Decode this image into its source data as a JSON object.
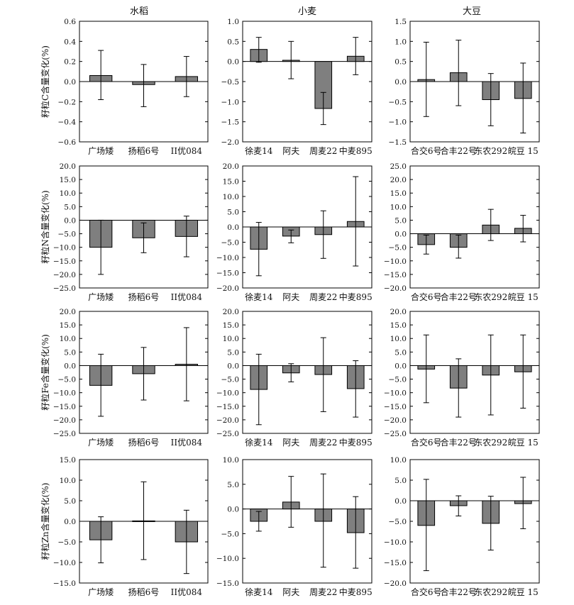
{
  "figure": {
    "column_titles": [
      "水稻",
      "小麦",
      "大豆"
    ],
    "row_labels": [
      "籽粒C含量变化(%)",
      "籽粒N含量变化(%)",
      "籽粒Fe含量变化(%)",
      "籽粒Zn含量变化(%)"
    ]
  },
  "colors": {
    "bar": "#7f7f7f",
    "axis": "#000000"
  },
  "chart_data": [
    {
      "type": "bar",
      "row": 0,
      "col": 0,
      "crop": "水稻",
      "ylabel": "籽粒C含量变化(%)",
      "categories": [
        "广场矮",
        "扬稻6号",
        "II优084"
      ],
      "values": [
        0.06,
        -0.03,
        0.05
      ],
      "err_upper": [
        0.31,
        0.17,
        0.25
      ],
      "err_lower": [
        -0.18,
        -0.25,
        -0.15
      ],
      "ylim": [
        -0.6,
        0.6
      ],
      "ticks": [
        -0.6,
        -0.4,
        -0.2,
        0.0,
        0.2,
        0.4,
        0.6
      ],
      "tick_labels": [
        "−0.6",
        "−0.4",
        "−0.2",
        "0.0",
        "0.2",
        "0.4",
        "0.6"
      ]
    },
    {
      "type": "bar",
      "row": 0,
      "col": 1,
      "crop": "小麦",
      "ylabel": "",
      "categories": [
        "徐麦14",
        "阿夫",
        "周麦22",
        "中麦895"
      ],
      "values": [
        0.3,
        0.03,
        -1.17,
        0.13
      ],
      "err_upper": [
        0.6,
        0.5,
        -0.77,
        0.6
      ],
      "err_lower": [
        -0.02,
        -0.43,
        -1.57,
        -0.33
      ],
      "ylim": [
        -2.0,
        1.0
      ],
      "ticks": [
        -2.0,
        -1.5,
        -1.0,
        -0.5,
        0.0,
        0.5,
        1.0
      ],
      "tick_labels": [
        "−2.0",
        "−1.5",
        "−1.0",
        "−0.5",
        "0.0",
        "0.5",
        "1.0"
      ]
    },
    {
      "type": "bar",
      "row": 0,
      "col": 2,
      "crop": "大豆",
      "ylabel": "",
      "categories": [
        "合交6号",
        "合丰22号",
        "东农292",
        "皖豆 15"
      ],
      "values": [
        0.05,
        0.22,
        -0.45,
        -0.42
      ],
      "err_upper": [
        0.98,
        1.03,
        0.2,
        0.46
      ],
      "err_lower": [
        -0.87,
        -0.6,
        -1.1,
        -1.28
      ],
      "ylim": [
        -1.5,
        1.5
      ],
      "ticks": [
        -1.5,
        -1.0,
        -0.5,
        0.0,
        0.5,
        1.0,
        1.5
      ],
      "tick_labels": [
        "−1.5",
        "−1.0",
        "−0.5",
        "0.0",
        "0.5",
        "1.0",
        "1.5"
      ]
    },
    {
      "type": "bar",
      "row": 1,
      "col": 0,
      "crop": "水稻",
      "ylabel": "籽粒N含量变化(%)",
      "categories": [
        "广场矮",
        "扬稻6号",
        "II优084"
      ],
      "values": [
        -10.0,
        -6.5,
        -6.0
      ],
      "err_upper": [
        0.0,
        -1.0,
        1.5
      ],
      "err_lower": [
        -20.0,
        -12.0,
        -13.5
      ],
      "ylim": [
        -25.0,
        20.0
      ],
      "ticks": [
        -25,
        -20,
        -15,
        -10,
        -5,
        0,
        5,
        10,
        15,
        20
      ],
      "tick_labels": [
        "−25.0",
        "−20.0",
        "−15.0",
        "−10.0",
        "−5.0",
        "0.0",
        "5.0",
        "10.0",
        "15.0",
        "20.0"
      ]
    },
    {
      "type": "bar",
      "row": 1,
      "col": 1,
      "crop": "小麦",
      "ylabel": "",
      "categories": [
        "徐麦14",
        "阿夫",
        "周麦22",
        "中麦895"
      ],
      "values": [
        -7.3,
        -3.0,
        -2.5,
        1.8
      ],
      "err_upper": [
        1.5,
        -1.0,
        5.3,
        16.5
      ],
      "err_lower": [
        -16.0,
        -5.2,
        -10.3,
        -12.8
      ],
      "ylim": [
        -20.0,
        20.0
      ],
      "ticks": [
        -20,
        -15,
        -10,
        -5,
        0,
        5,
        10,
        15,
        20
      ],
      "tick_labels": [
        "−20.0",
        "−15.0",
        "−10.0",
        "−5.0",
        "0.0",
        "5.0",
        "10.0",
        "15.0",
        "20.0"
      ]
    },
    {
      "type": "bar",
      "row": 1,
      "col": 2,
      "crop": "大豆",
      "ylabel": "",
      "categories": [
        "合交6号",
        "合丰22号",
        "东农292",
        "皖豆 15"
      ],
      "values": [
        -4.0,
        -5.0,
        3.2,
        2.0
      ],
      "err_upper": [
        -0.5,
        -0.5,
        9.0,
        6.8
      ],
      "err_lower": [
        -7.5,
        -9.0,
        -2.5,
        -3.0
      ],
      "ylim": [
        -20.0,
        25.0
      ],
      "ticks": [
        -20,
        -15,
        -10,
        -5,
        0,
        5,
        10,
        15,
        20,
        25
      ],
      "tick_labels": [
        "−20.0",
        "−15.0",
        "−10.0",
        "−5.0",
        "0.0",
        "5.0",
        "10.0",
        "15.0",
        "20.0",
        "25.0"
      ]
    },
    {
      "type": "bar",
      "row": 2,
      "col": 0,
      "crop": "水稻",
      "ylabel": "籽粒Fe含量变化(%)",
      "categories": [
        "广场矮",
        "扬稻6号",
        "II优084"
      ],
      "values": [
        -7.3,
        -3.0,
        0.5
      ],
      "err_upper": [
        4.2,
        6.7,
        14.0
      ],
      "err_lower": [
        -18.7,
        -12.7,
        -13.0
      ],
      "ylim": [
        -25.0,
        20.0
      ],
      "ticks": [
        -25,
        -20,
        -15,
        -10,
        -5,
        0,
        5,
        10,
        15,
        20
      ],
      "tick_labels": [
        "−25.0",
        "−20.0",
        "−15.0",
        "−10.0",
        "−5.0",
        "0.0",
        "5.0",
        "10.0",
        "15.0",
        "20.0"
      ]
    },
    {
      "type": "bar",
      "row": 2,
      "col": 1,
      "crop": "小麦",
      "ylabel": "",
      "categories": [
        "徐麦14",
        "阿夫",
        "周麦22",
        "中麦895"
      ],
      "values": [
        -8.8,
        -2.7,
        -3.3,
        -8.5
      ],
      "err_upper": [
        4.2,
        0.7,
        10.3,
        1.8
      ],
      "err_lower": [
        -21.8,
        -6.0,
        -17.0,
        -19.0
      ],
      "ylim": [
        -25.0,
        20.0
      ],
      "ticks": [
        -25,
        -20,
        -15,
        -10,
        -5,
        0,
        5,
        10,
        15,
        20
      ],
      "tick_labels": [
        "−25.0",
        "−20.0",
        "−15.0",
        "−10.0",
        "−5.0",
        "0.0",
        "5.0",
        "10.0",
        "15.0",
        "20.0"
      ]
    },
    {
      "type": "bar",
      "row": 2,
      "col": 2,
      "crop": "大豆",
      "ylabel": "",
      "categories": [
        "合交6号",
        "合丰22号",
        "东农292",
        "皖豆 15"
      ],
      "values": [
        -1.3,
        -8.3,
        -3.5,
        -2.3
      ],
      "err_upper": [
        11.3,
        2.5,
        11.3,
        11.3
      ],
      "err_lower": [
        -13.7,
        -19.0,
        -18.2,
        -15.7
      ],
      "ylim": [
        -25.0,
        20.0
      ],
      "ticks": [
        -25,
        -20,
        -15,
        -10,
        -5,
        0,
        5,
        10,
        15,
        20
      ],
      "tick_labels": [
        "−25.0",
        "−20.0",
        "−15.0",
        "−10.0",
        "−5.0",
        "0.0",
        "5.0",
        "10.0",
        "15.0",
        "20.0"
      ]
    },
    {
      "type": "bar",
      "row": 3,
      "col": 0,
      "crop": "水稻",
      "ylabel": "籽粒Zn含量变化(%)",
      "categories": [
        "广场矮",
        "扬稻6号",
        "II优084"
      ],
      "values": [
        -4.5,
        0.1,
        -5.0
      ],
      "err_upper": [
        1.1,
        9.6,
        2.7
      ],
      "err_lower": [
        -10.1,
        -9.3,
        -12.7
      ],
      "ylim": [
        -15.0,
        15.0
      ],
      "ticks": [
        -15,
        -10,
        -5,
        0,
        5,
        10,
        15
      ],
      "tick_labels": [
        "−15.0",
        "−10.0",
        "−5.0",
        "0.0",
        "5.0",
        "10.0",
        "15.0"
      ]
    },
    {
      "type": "bar",
      "row": 3,
      "col": 1,
      "crop": "小麦",
      "ylabel": "",
      "categories": [
        "徐麦14",
        "阿夫",
        "周麦22",
        "中麦895"
      ],
      "values": [
        -2.5,
        1.4,
        -2.5,
        -4.8
      ],
      "err_upper": [
        -0.5,
        6.6,
        7.1,
        2.5
      ],
      "err_lower": [
        -4.5,
        -3.7,
        -11.8,
        -12.0
      ],
      "ylim": [
        -15.0,
        10.0
      ],
      "ticks": [
        -15,
        -10,
        -5,
        0,
        5,
        10
      ],
      "tick_labels": [
        "−15.0",
        "−10.0",
        "−5.0",
        "0.0",
        "5.0",
        "10.0"
      ]
    },
    {
      "type": "bar",
      "row": 3,
      "col": 2,
      "crop": "大豆",
      "ylabel": "",
      "categories": [
        "合交6号",
        "合丰22号",
        "东农292",
        "皖豆 15"
      ],
      "values": [
        -6.0,
        -1.2,
        -5.5,
        -0.7
      ],
      "err_upper": [
        5.2,
        1.2,
        1.1,
        5.7
      ],
      "err_lower": [
        -17.0,
        -3.7,
        -12.0,
        -6.8
      ],
      "ylim": [
        -20.0,
        10.0
      ],
      "ticks": [
        -20,
        -15,
        -10,
        -5,
        0,
        5,
        10
      ],
      "tick_labels": [
        "−20.0",
        "−15.0",
        "−10.0",
        "−5.0",
        "0.0",
        "5.0",
        "10.0"
      ]
    }
  ]
}
